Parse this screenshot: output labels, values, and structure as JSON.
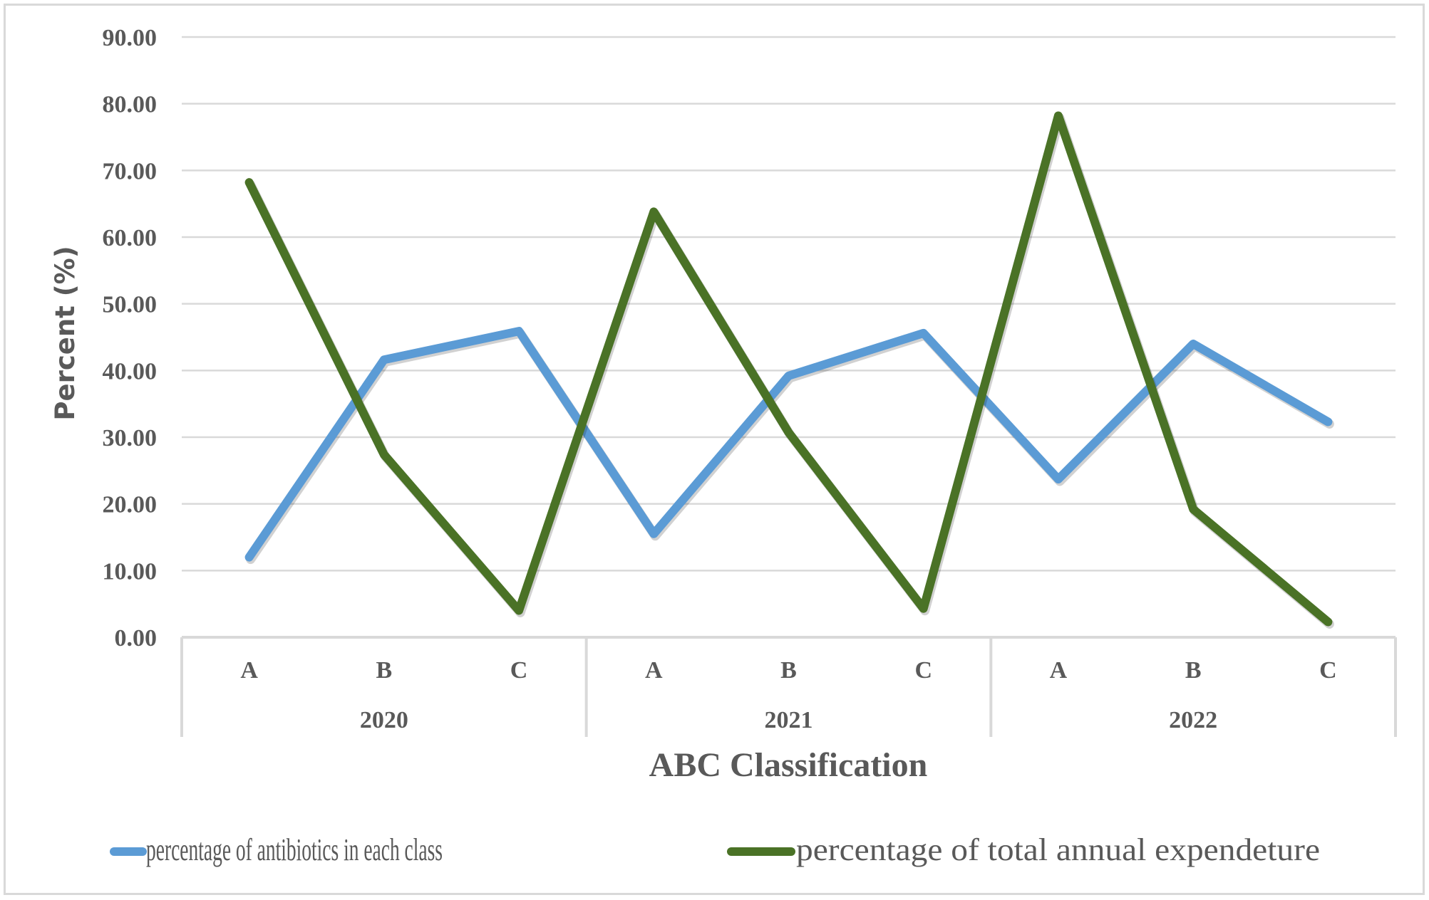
{
  "chart_data": {
    "type": "line",
    "title": "",
    "xlabel": "ABC Classification",
    "ylabel": "Percent (%)",
    "ylim": [
      0,
      90
    ],
    "yticks": [
      "0.00",
      "10.00",
      "20.00",
      "30.00",
      "40.00",
      "50.00",
      "60.00",
      "70.00",
      "80.00",
      "90.00"
    ],
    "grid": true,
    "legend_position": "bottom",
    "groups": [
      {
        "label": "2020",
        "categories": [
          "A",
          "B",
          "C"
        ]
      },
      {
        "label": "2021",
        "categories": [
          "A",
          "B",
          "C"
        ]
      },
      {
        "label": "2022",
        "categories": [
          "A",
          "B",
          "C"
        ]
      }
    ],
    "categories": [
      "2020 A",
      "2020 B",
      "2020 C",
      "2021 A",
      "2021 B",
      "2021 C",
      "2022 A",
      "2022 B",
      "2022 C"
    ],
    "series": [
      {
        "name": "percentage of antibiotics in each class",
        "color": "#5b9bd5",
        "values": [
          12.0,
          41.6,
          45.9,
          15.5,
          39.2,
          45.6,
          23.7,
          44.0,
          32.3
        ]
      },
      {
        "name": "percentage of total annual expendeture",
        "color": "#4a7226",
        "values": [
          68.2,
          27.4,
          4.0,
          63.8,
          30.7,
          4.3,
          78.2,
          19.2,
          2.3
        ]
      }
    ]
  }
}
